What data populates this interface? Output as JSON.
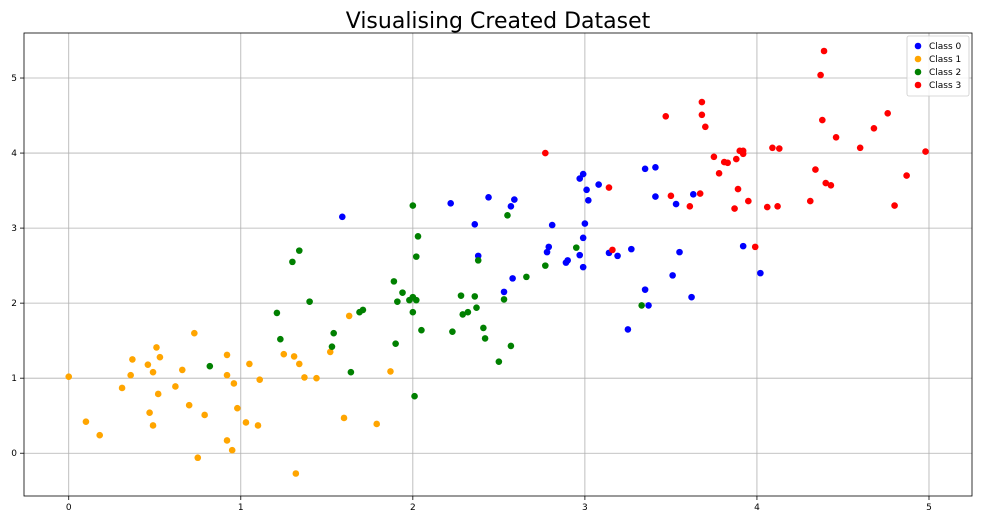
{
  "chart_data": {
    "type": "scatter",
    "title": "Visualising Created Dataset",
    "xlabel": "",
    "ylabel": "",
    "xlim": [
      -0.26,
      5.25
    ],
    "ylim": [
      -0.57,
      5.6
    ],
    "xticks": [
      0,
      1,
      2,
      3,
      4,
      5
    ],
    "yticks": [
      0,
      1,
      2,
      3,
      4,
      5
    ],
    "grid": true,
    "legend_position": "top-right",
    "series": [
      {
        "name": "Class 0",
        "color": "#0000ff",
        "points": [
          [
            1.59,
            3.15
          ],
          [
            2.22,
            3.33
          ],
          [
            2.36,
            3.05
          ],
          [
            2.44,
            3.41
          ],
          [
            2.38,
            2.63
          ],
          [
            2.53,
            2.15
          ],
          [
            2.57,
            3.29
          ],
          [
            2.59,
            3.38
          ],
          [
            2.58,
            2.33
          ],
          [
            2.78,
            2.68
          ],
          [
            2.79,
            2.75
          ],
          [
            2.81,
            3.04
          ],
          [
            2.89,
            2.54
          ],
          [
            2.9,
            2.57
          ],
          [
            2.97,
            2.64
          ],
          [
            2.97,
            3.66
          ],
          [
            2.99,
            3.72
          ],
          [
            2.99,
            2.87
          ],
          [
            2.99,
            2.48
          ],
          [
            3.0,
            3.06
          ],
          [
            3.01,
            3.51
          ],
          [
            3.02,
            3.37
          ],
          [
            3.08,
            3.58
          ],
          [
            3.14,
            2.67
          ],
          [
            3.19,
            2.63
          ],
          [
            3.25,
            1.65
          ],
          [
            3.27,
            2.72
          ],
          [
            3.35,
            3.79
          ],
          [
            3.35,
            2.18
          ],
          [
            3.37,
            1.97
          ],
          [
            3.41,
            3.42
          ],
          [
            3.41,
            3.81
          ],
          [
            3.51,
            2.37
          ],
          [
            3.53,
            3.32
          ],
          [
            3.55,
            2.68
          ],
          [
            3.62,
            2.08
          ],
          [
            3.63,
            3.45
          ],
          [
            3.92,
            2.76
          ],
          [
            4.02,
            2.4
          ]
        ]
      },
      {
        "name": "Class 1",
        "color": "#ffa500",
        "points": [
          [
            0.0,
            1.02
          ],
          [
            0.1,
            0.42
          ],
          [
            0.18,
            0.24
          ],
          [
            0.31,
            0.87
          ],
          [
            0.36,
            1.04
          ],
          [
            0.37,
            1.25
          ],
          [
            0.46,
            1.18
          ],
          [
            0.47,
            0.54
          ],
          [
            0.49,
            1.08
          ],
          [
            0.49,
            0.37
          ],
          [
            0.51,
            1.41
          ],
          [
            0.52,
            0.79
          ],
          [
            0.53,
            1.28
          ],
          [
            0.62,
            0.89
          ],
          [
            0.66,
            1.11
          ],
          [
            0.7,
            0.64
          ],
          [
            0.73,
            1.6
          ],
          [
            0.75,
            -0.06
          ],
          [
            0.79,
            0.51
          ],
          [
            0.92,
            1.31
          ],
          [
            0.92,
            1.04
          ],
          [
            0.92,
            0.17
          ],
          [
            0.95,
            0.04
          ],
          [
            0.96,
            0.93
          ],
          [
            0.98,
            0.6
          ],
          [
            1.03,
            0.41
          ],
          [
            1.05,
            1.19
          ],
          [
            1.1,
            0.37
          ],
          [
            1.11,
            0.98
          ],
          [
            1.25,
            1.32
          ],
          [
            1.31,
            1.29
          ],
          [
            1.32,
            -0.27
          ],
          [
            1.34,
            1.19
          ],
          [
            1.37,
            1.01
          ],
          [
            1.44,
            1.0
          ],
          [
            1.52,
            1.35
          ],
          [
            1.6,
            0.47
          ],
          [
            1.63,
            1.83
          ],
          [
            1.79,
            0.39
          ],
          [
            1.87,
            1.09
          ]
        ]
      },
      {
        "name": "Class 2",
        "color": "#008000",
        "points": [
          [
            0.82,
            1.16
          ],
          [
            1.21,
            1.87
          ],
          [
            1.23,
            1.52
          ],
          [
            1.3,
            2.55
          ],
          [
            1.34,
            2.7
          ],
          [
            1.4,
            2.02
          ],
          [
            1.53,
            1.42
          ],
          [
            1.54,
            1.6
          ],
          [
            1.64,
            1.08
          ],
          [
            1.69,
            1.88
          ],
          [
            1.71,
            1.91
          ],
          [
            1.89,
            2.29
          ],
          [
            1.9,
            1.46
          ],
          [
            1.91,
            2.02
          ],
          [
            1.94,
            2.14
          ],
          [
            1.98,
            2.04
          ],
          [
            2.0,
            2.08
          ],
          [
            2.0,
            1.88
          ],
          [
            2.0,
            3.3
          ],
          [
            2.01,
            0.76
          ],
          [
            2.02,
            2.04
          ],
          [
            2.02,
            2.62
          ],
          [
            2.03,
            2.89
          ],
          [
            2.05,
            1.64
          ],
          [
            2.23,
            1.62
          ],
          [
            2.28,
            2.1
          ],
          [
            2.29,
            1.85
          ],
          [
            2.32,
            1.88
          ],
          [
            2.36,
            2.09
          ],
          [
            2.37,
            1.94
          ],
          [
            2.38,
            2.57
          ],
          [
            2.41,
            1.67
          ],
          [
            2.42,
            1.53
          ],
          [
            2.5,
            1.22
          ],
          [
            2.53,
            2.05
          ],
          [
            2.55,
            3.17
          ],
          [
            2.57,
            1.43
          ],
          [
            2.66,
            2.35
          ],
          [
            2.77,
            2.5
          ],
          [
            2.95,
            2.74
          ],
          [
            3.33,
            1.97
          ]
        ]
      },
      {
        "name": "Class 3",
        "color": "#ff0000",
        "points": [
          [
            2.77,
            4.0
          ],
          [
            3.14,
            3.54
          ],
          [
            3.16,
            2.71
          ],
          [
            3.47,
            4.49
          ],
          [
            3.5,
            3.43
          ],
          [
            3.61,
            3.29
          ],
          [
            3.67,
            3.46
          ],
          [
            3.68,
            4.68
          ],
          [
            3.68,
            4.51
          ],
          [
            3.7,
            4.35
          ],
          [
            3.75,
            3.95
          ],
          [
            3.78,
            3.73
          ],
          [
            3.81,
            3.88
          ],
          [
            3.83,
            3.87
          ],
          [
            3.87,
            3.26
          ],
          [
            3.88,
            3.92
          ],
          [
            3.89,
            3.52
          ],
          [
            3.9,
            4.03
          ],
          [
            3.92,
            3.99
          ],
          [
            3.92,
            4.03
          ],
          [
            3.95,
            3.36
          ],
          [
            3.99,
            2.75
          ],
          [
            4.06,
            3.28
          ],
          [
            4.09,
            4.07
          ],
          [
            4.12,
            3.29
          ],
          [
            4.13,
            4.06
          ],
          [
            4.31,
            3.36
          ],
          [
            4.34,
            3.78
          ],
          [
            4.37,
            5.04
          ],
          [
            4.38,
            4.44
          ],
          [
            4.39,
            5.36
          ],
          [
            4.4,
            3.6
          ],
          [
            4.43,
            3.57
          ],
          [
            4.46,
            4.21
          ],
          [
            4.6,
            4.07
          ],
          [
            4.68,
            4.33
          ],
          [
            4.76,
            4.53
          ],
          [
            4.8,
            3.3
          ],
          [
            4.87,
            3.7
          ],
          [
            4.98,
            4.02
          ]
        ]
      }
    ]
  }
}
